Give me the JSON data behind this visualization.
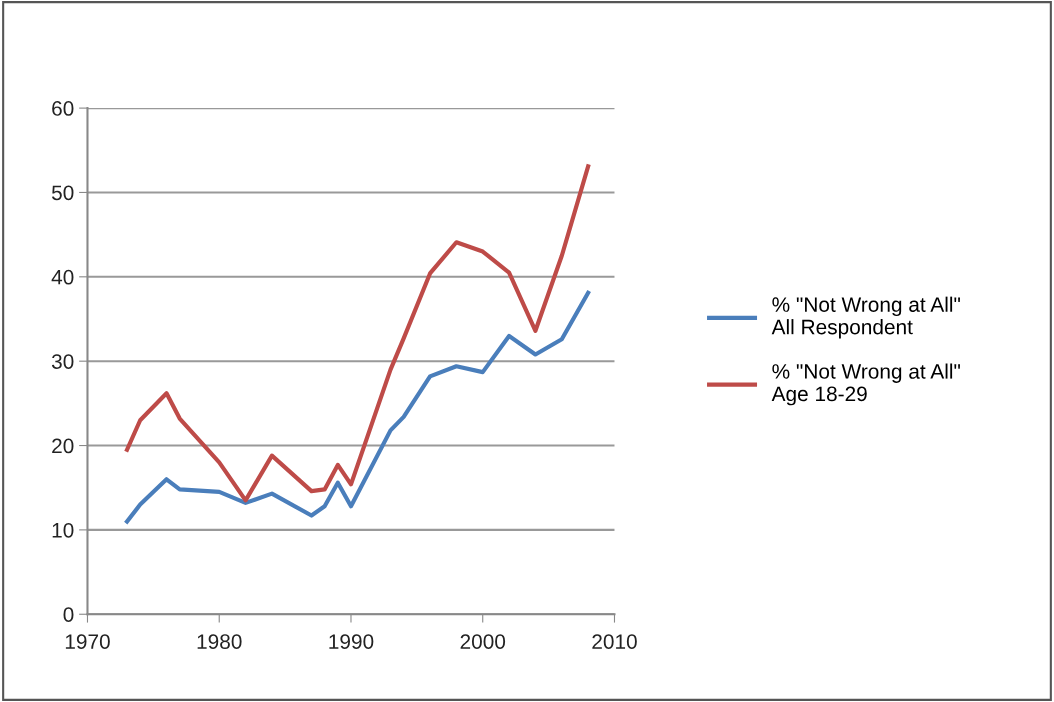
{
  "chart_data": {
    "type": "line",
    "xlim": [
      1970,
      2010
    ],
    "xticks": [
      1970,
      1980,
      1990,
      2000,
      2010
    ],
    "ylim": [
      0,
      60
    ],
    "yticks": [
      0,
      10,
      20,
      30,
      40,
      50,
      60
    ],
    "grid": "y",
    "legend": "right",
    "marker": "none",
    "line_style": "solid",
    "series": [
      {
        "name": "% \"Not Wrong at All\"\nAll Respondent",
        "color": "#4a7ebb",
        "x": [
          1973,
          1974,
          1976,
          1977,
          1980,
          1982,
          1984,
          1987,
          1988,
          1989,
          1990,
          1993,
          1994,
          1996,
          1998,
          2000,
          2002,
          2004,
          2006,
          2008
        ],
        "values": [
          11,
          13,
          16,
          14.8,
          14.5,
          13.2,
          14.3,
          11.7,
          12.8,
          15.6,
          12.8,
          21.8,
          23.4,
          28.2,
          29.4,
          28.7,
          33,
          30.8,
          32.6,
          38.1
        ]
      },
      {
        "name": "% \"Not Wrong at All\"\nAge 18-29",
        "color": "#be4b48",
        "x": [
          1973,
          1974,
          1976,
          1977,
          1980,
          1982,
          1984,
          1987,
          1988,
          1989,
          1990,
          1993,
          1994,
          1996,
          1998,
          2000,
          2002,
          2004,
          2006,
          2008
        ],
        "values": [
          19.5,
          23,
          26.2,
          23.2,
          18,
          13.5,
          18.8,
          14.6,
          14.8,
          17.7,
          15.4,
          29,
          32.7,
          40.4,
          44.1,
          43,
          40.5,
          33.6,
          42.5,
          53.1
        ]
      }
    ]
  }
}
